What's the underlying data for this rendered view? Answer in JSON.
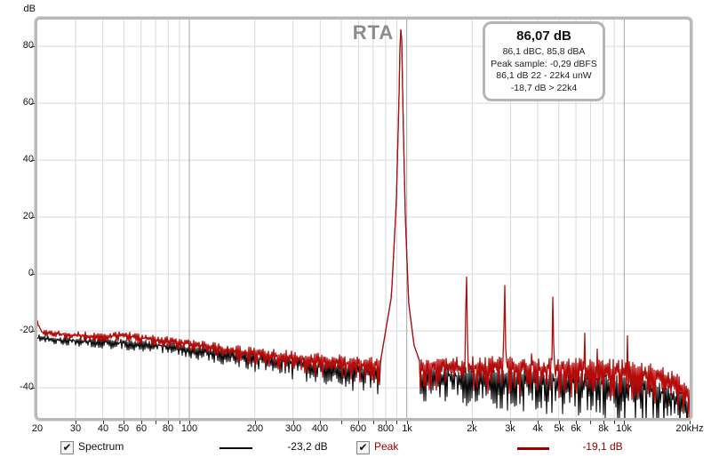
{
  "title": "RTA",
  "info_box": {
    "headline": "86,07 dB",
    "lines": [
      "86,1 dBC, 85,8 dBA",
      "Peak sample: -0,29 dBFS",
      "86,1 dB 22 - 22k4 unW",
      "-18,7 dB > 22k4"
    ]
  },
  "legend": {
    "items": [
      {
        "label": "Spectrum",
        "value": "-23,2 dB",
        "color": "#0a0a0a",
        "checked": true
      },
      {
        "label": "Peak",
        "value": "-19,1 dB",
        "color": "#a00000",
        "checked": true
      }
    ]
  },
  "colors": {
    "grid_minor": "#d9d9d9",
    "grid_major": "#a6a6a6",
    "frame": "#b9b9b9",
    "title": "#8c8c8c",
    "spectrum_trace": "#0a0a0a",
    "peak_trace": "#b40b0b"
  },
  "chart_data": {
    "type": "line",
    "title": "RTA",
    "x_axis": {
      "scale": "log",
      "unit": "Hz",
      "range": [
        20,
        20000
      ],
      "tick_labels": [
        {
          "f": 20,
          "label": "20"
        },
        {
          "f": 30,
          "label": "30"
        },
        {
          "f": 40,
          "label": "40"
        },
        {
          "f": 50,
          "label": "50"
        },
        {
          "f": 60,
          "label": "60"
        },
        {
          "f": 80,
          "label": "80"
        },
        {
          "f": 100,
          "label": "100"
        },
        {
          "f": 200,
          "label": "200"
        },
        {
          "f": 300,
          "label": "300"
        },
        {
          "f": 400,
          "label": "400"
        },
        {
          "f": 600,
          "label": "600"
        },
        {
          "f": 800,
          "label": "800"
        },
        {
          "f": 1000,
          "label": "1k"
        },
        {
          "f": 2000,
          "label": "2k"
        },
        {
          "f": 3000,
          "label": "3k"
        },
        {
          "f": 4000,
          "label": "4k"
        },
        {
          "f": 5000,
          "label": "5k"
        },
        {
          "f": 6000,
          "label": "6k"
        },
        {
          "f": 8000,
          "label": "8k"
        },
        {
          "f": 10000,
          "label": "10k"
        },
        {
          "f": 20000,
          "label": "20kHz"
        }
      ],
      "gridlines": [
        30,
        40,
        50,
        60,
        70,
        80,
        90,
        100,
        200,
        300,
        400,
        500,
        600,
        700,
        800,
        900,
        1000,
        2000,
        3000,
        4000,
        5000,
        6000,
        7000,
        8000,
        9000,
        10000
      ],
      "major_gridlines": [
        100,
        1000,
        10000
      ]
    },
    "y_axis": {
      "unit": "dB",
      "range": [
        -50.6,
        89.4
      ],
      "ticks": [
        80,
        60,
        40,
        20,
        0,
        -20,
        -40
      ]
    },
    "fundamental": {
      "freq_hz": 940,
      "level_db": 86.07
    },
    "series": [
      {
        "name": "Spectrum",
        "color": "#0a0a0a",
        "current_level_db": -23.2,
        "floor_envelope": [
          [
            20,
            -22.5
          ],
          [
            30,
            -23.5
          ],
          [
            40,
            -24
          ],
          [
            60,
            -24.5
          ],
          [
            80,
            -25.5
          ],
          [
            100,
            -26.5
          ],
          [
            150,
            -28
          ],
          [
            200,
            -29.5
          ],
          [
            300,
            -31
          ],
          [
            400,
            -32.5
          ],
          [
            600,
            -34
          ],
          [
            800,
            -34.5
          ],
          [
            1300,
            -35.5
          ],
          [
            2000,
            -36
          ],
          [
            3000,
            -36.5
          ],
          [
            4000,
            -37
          ],
          [
            6000,
            -37.5
          ],
          [
            8000,
            -38
          ],
          [
            10000,
            -39
          ],
          [
            13000,
            -40.5
          ],
          [
            16000,
            -42
          ],
          [
            19000,
            -44.5
          ],
          [
            20000,
            -46
          ]
        ],
        "peak_shape": [
          [
            760,
            -30
          ],
          [
            850,
            -8
          ],
          [
            895,
            25
          ],
          [
            920,
            60
          ],
          [
            933,
            84
          ],
          [
            940,
            86.07
          ],
          [
            947,
            84
          ],
          [
            962,
            55
          ],
          [
            985,
            20
          ],
          [
            1020,
            -10
          ],
          [
            1080,
            -25
          ],
          [
            1150,
            -31
          ]
        ],
        "spikes": [],
        "noise_up": [
          [
            20,
            1.2
          ],
          [
            100,
            1.5
          ],
          [
            300,
            2.5
          ],
          [
            1000,
            3
          ],
          [
            3000,
            3.2
          ],
          [
            20000,
            3.2
          ]
        ],
        "noise_down": [
          [
            20,
            1.5
          ],
          [
            100,
            3
          ],
          [
            300,
            6
          ],
          [
            1000,
            9
          ],
          [
            3000,
            12
          ],
          [
            10000,
            13
          ],
          [
            20000,
            10
          ]
        ],
        "seed": 7
      },
      {
        "name": "Peak",
        "color": "#b40b0b",
        "current_level_db": -19.1,
        "floor_envelope": [
          [
            20,
            -17
          ],
          [
            21,
            -20.5
          ],
          [
            30,
            -21.5
          ],
          [
            40,
            -22
          ],
          [
            50,
            -21.5
          ],
          [
            60,
            -22.5
          ],
          [
            80,
            -23.5
          ],
          [
            100,
            -24.5
          ],
          [
            150,
            -26.5
          ],
          [
            200,
            -28
          ],
          [
            300,
            -29.5
          ],
          [
            400,
            -30.5
          ],
          [
            600,
            -31.5
          ],
          [
            800,
            -32
          ],
          [
            1300,
            -32.5
          ],
          [
            2000,
            -32.5
          ],
          [
            3000,
            -32.5
          ],
          [
            4000,
            -33
          ],
          [
            6000,
            -33
          ],
          [
            8000,
            -33.5
          ],
          [
            10000,
            -34
          ],
          [
            13000,
            -35
          ],
          [
            16000,
            -36.5
          ],
          [
            19000,
            -40
          ],
          [
            20000,
            -43
          ]
        ],
        "peak_shape": [
          [
            760,
            -30
          ],
          [
            850,
            -8
          ],
          [
            895,
            25
          ],
          [
            920,
            60
          ],
          [
            933,
            84
          ],
          [
            940,
            86.07
          ],
          [
            947,
            84
          ],
          [
            962,
            55
          ],
          [
            985,
            20
          ],
          [
            1020,
            -10
          ],
          [
            1080,
            -25
          ],
          [
            1150,
            -31
          ]
        ],
        "spikes": [
          [
            1880,
            4.2
          ],
          [
            2820,
            -0.6
          ],
          [
            3760,
            -19
          ],
          [
            4700,
            -5.5
          ],
          [
            5640,
            -27
          ],
          [
            6580,
            -18
          ],
          [
            7520,
            -25
          ],
          [
            8460,
            -28
          ],
          [
            10340,
            -19.5
          ]
        ],
        "noise_up": [
          [
            20,
            1.2
          ],
          [
            100,
            1.5
          ],
          [
            300,
            2.5
          ],
          [
            1000,
            3
          ],
          [
            3000,
            3.8
          ],
          [
            20000,
            3.8
          ]
        ],
        "noise_down": [
          [
            20,
            1.5
          ],
          [
            100,
            2.5
          ],
          [
            300,
            5
          ],
          [
            1000,
            8
          ],
          [
            3000,
            10
          ],
          [
            10000,
            11
          ],
          [
            20000,
            9
          ]
        ],
        "seed": 13
      }
    ],
    "legend_position": "bottom"
  }
}
